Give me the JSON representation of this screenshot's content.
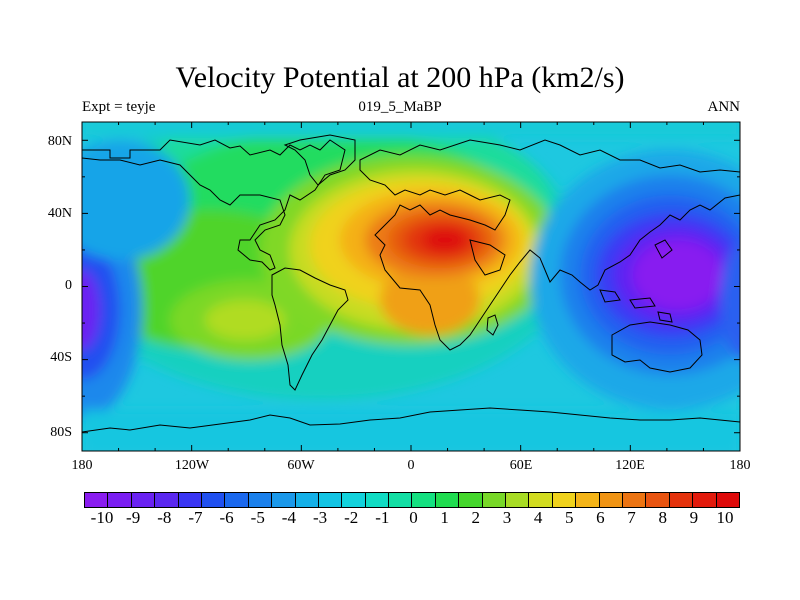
{
  "title": "Velocity Potential at 200 hPa (km2/s)",
  "subtitle_left": "Expt = teyje",
  "subtitle_center": "019_5_MaBP",
  "subtitle_right": "ANN",
  "lat_labels": [
    "80N",
    "40N",
    "0",
    "40S",
    "80S"
  ],
  "lon_labels": [
    "180",
    "120W",
    "60W",
    "0",
    "60E",
    "120E",
    "180"
  ],
  "colorbar": {
    "labels": [
      "-10",
      "-9",
      "-8",
      "-7",
      "-6",
      "-5",
      "-4",
      "-3",
      "-2",
      "-1",
      "0",
      "1",
      "2",
      "3",
      "4",
      "5",
      "6",
      "7",
      "8",
      "9",
      "10"
    ],
    "colors": [
      "#8a1cf0",
      "#7a1ef2",
      "#6a22f2",
      "#5a28f0",
      "#3a36f4",
      "#2050f0",
      "#1a68ee",
      "#1a80ec",
      "#1a98ea",
      "#14b0e8",
      "#12c4e4",
      "#12d2dc",
      "#10dcc4",
      "#12dea4",
      "#14e080",
      "#20dc50",
      "#44d62c",
      "#78d828",
      "#a8dc24",
      "#d2dc20",
      "#f0d21c",
      "#f4b418",
      "#f09414",
      "#ec7412",
      "#e85410",
      "#e4320c",
      "#e21a0c",
      "#de0a0a"
    ]
  },
  "chart_data": {
    "type": "heatmap",
    "title": "Velocity Potential at 200 hPa (km2/s)",
    "experiment": "teyje",
    "period": "019_5_MaBP",
    "season": "ANN",
    "x_range": [
      -180,
      180
    ],
    "y_range": [
      -90,
      90
    ],
    "x_ticks": [
      "180",
      "120W",
      "60W",
      "0",
      "60E",
      "120E",
      "180"
    ],
    "y_ticks": [
      "80N",
      "40N",
      "0",
      "40S",
      "80S"
    ],
    "contour_levels": [
      -10,
      -9,
      -8,
      -7,
      -6,
      -5,
      -4,
      -3,
      -2,
      -1,
      0,
      1,
      2,
      3,
      4,
      5,
      6,
      7,
      8,
      9,
      10
    ],
    "features": [
      {
        "name": "positive maximum over North Africa / Arabia",
        "lon": 20,
        "lat": 25,
        "value": 10
      },
      {
        "name": "secondary maximum over Indian Ocean",
        "lon": 5,
        "lat": -15,
        "value": 7
      },
      {
        "name": "positive area over South America",
        "lon": -80,
        "lat": -20,
        "value": 5
      },
      {
        "name": "negative minimum over West Pacific",
        "lon": 140,
        "lat": 5,
        "value": -10
      },
      {
        "name": "negative area over East Pacific",
        "lon": -175,
        "lat": -10,
        "value": -8
      }
    ]
  }
}
